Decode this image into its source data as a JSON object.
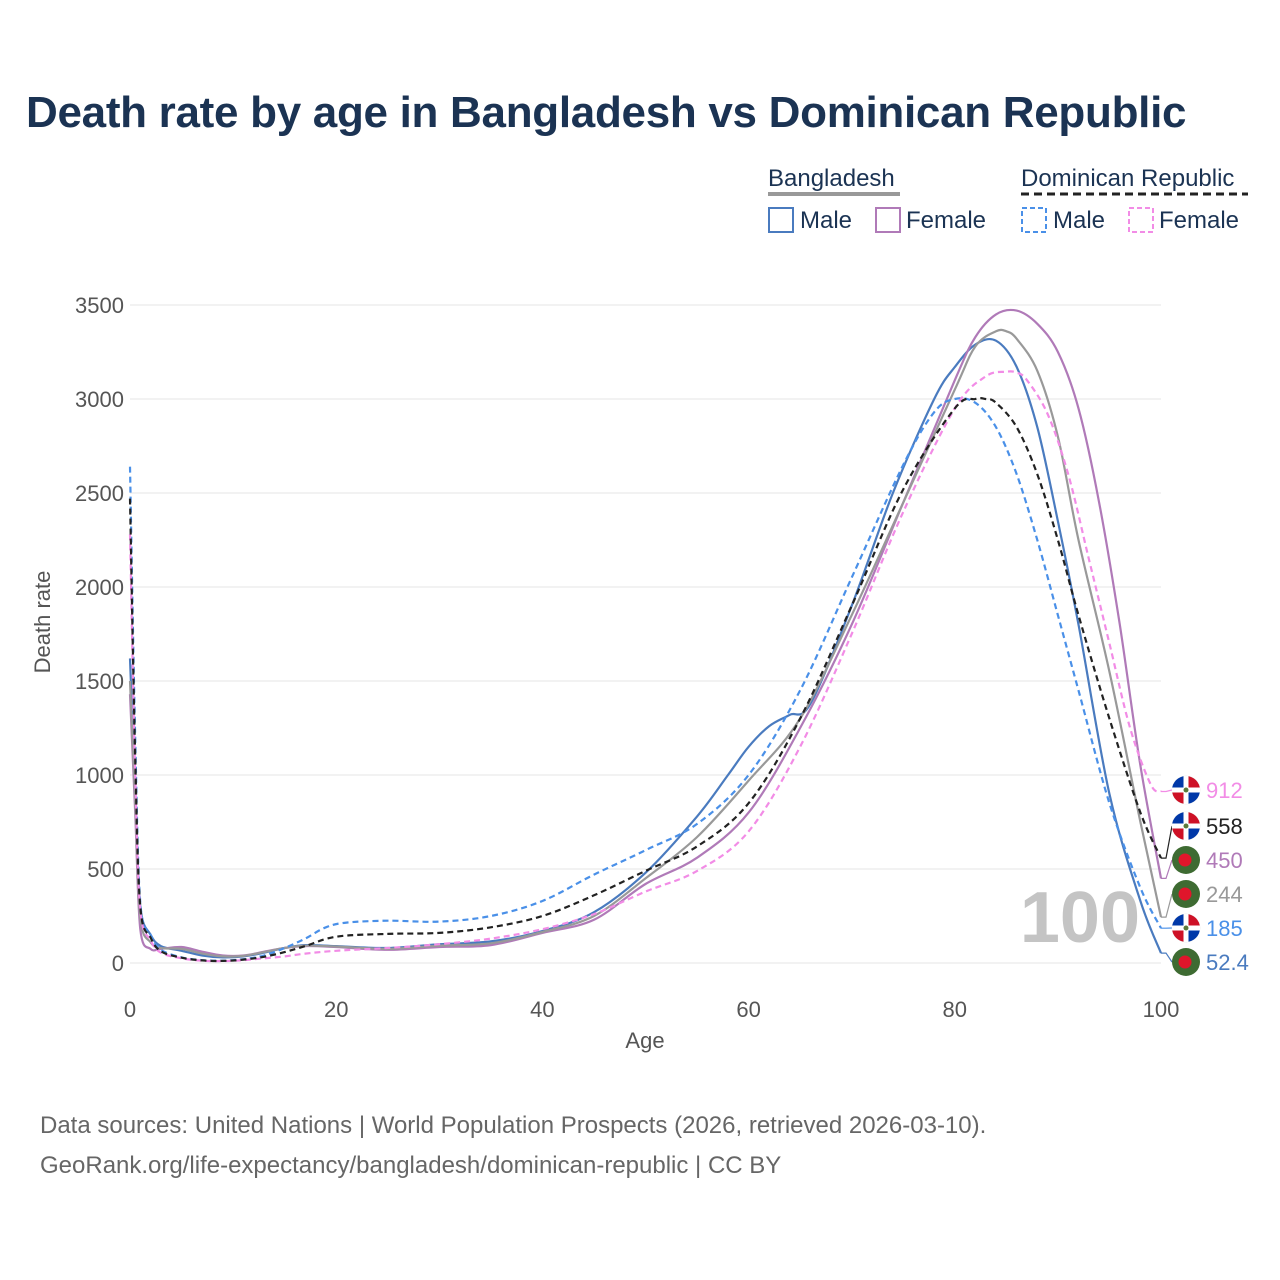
{
  "title": "Death rate by age in Bangladesh vs Dominican Republic",
  "legend": {
    "groups": [
      {
        "name": "Bangladesh",
        "line_color": "#999999",
        "line_style": "solid",
        "items": [
          {
            "label": "Male",
            "color": "#4a7bbf",
            "style": "solid"
          },
          {
            "label": "Female",
            "color": "#b07ab8",
            "style": "solid"
          }
        ]
      },
      {
        "name": "Dominican Republic",
        "line_color": "#222222",
        "line_style": "dashed",
        "items": [
          {
            "label": "Male",
            "color": "#4a90e8",
            "style": "dashed"
          },
          {
            "label": "Female",
            "color": "#f28ce6",
            "style": "dashed"
          }
        ]
      }
    ]
  },
  "watermark": "100",
  "footer": {
    "line1": "Data sources: United Nations | World Population Prospects (2026, retrieved 2026-03-10).",
    "line2": "GeoRank.org/life-expectancy/bangladesh/dominican-republic | CC BY"
  },
  "chart_data": {
    "type": "line",
    "title": "Death rate by age in Bangladesh vs Dominican Republic",
    "xlabel": "Age",
    "ylabel": "Death rate",
    "xlim": [
      0,
      100
    ],
    "ylim": [
      0,
      3500
    ],
    "xticks": [
      0,
      20,
      40,
      60,
      80,
      100
    ],
    "yticks": [
      0,
      500,
      1000,
      1500,
      2000,
      2500,
      3000,
      3500
    ],
    "grid": true,
    "series": [
      {
        "name": "Bangladesh Male",
        "color": "#4a7bbf",
        "dashed": false,
        "end_label": "52.4",
        "flag": "bangladesh",
        "x": [
          0,
          0.5,
          1,
          2,
          3,
          5,
          7,
          9,
          11,
          13,
          15,
          17,
          20,
          25,
          30,
          35,
          40,
          45,
          50,
          55,
          58,
          60,
          62,
          64,
          66,
          70,
          74,
          78,
          80,
          82,
          84,
          86,
          88,
          90,
          92,
          95,
          98,
          100
        ],
        "y": [
          1620,
          900,
          300,
          150,
          90,
          65,
          40,
          30,
          35,
          55,
          80,
          95,
          90,
          80,
          100,
          115,
          170,
          270,
          480,
          780,
          1000,
          1150,
          1260,
          1320,
          1380,
          1900,
          2500,
          3000,
          3170,
          3290,
          3310,
          3170,
          2850,
          2350,
          1800,
          900,
          330,
          52.4
        ]
      },
      {
        "name": "Bangladesh Female",
        "color": "#b07ab8",
        "dashed": false,
        "end_label": "450",
        "flag": "bangladesh",
        "x": [
          0,
          0.5,
          1,
          2,
          3,
          5,
          7,
          9,
          11,
          13,
          15,
          17,
          20,
          25,
          30,
          35,
          40,
          45,
          50,
          55,
          60,
          65,
          70,
          75,
          80,
          82,
          84,
          86,
          88,
          90,
          92,
          94,
          96,
          98,
          100
        ],
        "y": [
          1430,
          800,
          180,
          75,
          75,
          85,
          60,
          40,
          40,
          60,
          80,
          90,
          85,
          70,
          85,
          95,
          160,
          230,
          420,
          560,
          800,
          1250,
          1800,
          2450,
          3100,
          3330,
          3450,
          3470,
          3400,
          3250,
          2950,
          2450,
          1800,
          1050,
          450
        ]
      },
      {
        "name": "Bangladesh",
        "color": "#999999",
        "dashed": false,
        "end_label": "244",
        "flag": "bangladesh",
        "x": [
          0,
          0.5,
          1,
          2,
          3,
          5,
          7,
          9,
          11,
          13,
          15,
          17,
          20,
          25,
          30,
          35,
          40,
          45,
          50,
          55,
          60,
          65,
          70,
          75,
          80,
          82,
          84,
          85,
          86,
          88,
          90,
          92,
          95,
          98,
          100
        ],
        "y": [
          1500,
          850,
          240,
          110,
          80,
          75,
          50,
          35,
          38,
          58,
          80,
          92,
          88,
          75,
          92,
          105,
          165,
          250,
          450,
          670,
          970,
          1300,
          1850,
          2450,
          3050,
          3280,
          3360,
          3360,
          3320,
          3150,
          2800,
          2250,
          1550,
          750,
          244
        ]
      },
      {
        "name": "Dominican Republic Male",
        "color": "#4a90e8",
        "dashed": true,
        "end_label": "185",
        "flag": "dominican",
        "x": [
          0,
          0.5,
          1,
          2,
          3,
          5,
          7,
          9,
          11,
          13,
          15,
          17,
          19,
          21,
          25,
          30,
          35,
          40,
          45,
          50,
          55,
          60,
          65,
          70,
          75,
          78,
          80,
          82,
          84,
          86,
          88,
          90,
          92,
          95,
          98,
          100
        ],
        "y": [
          2640,
          1200,
          320,
          150,
          70,
          30,
          15,
          12,
          20,
          40,
          80,
          130,
          190,
          215,
          225,
          220,
          250,
          330,
          470,
          600,
          740,
          1000,
          1450,
          2050,
          2650,
          2930,
          3000,
          2980,
          2850,
          2600,
          2250,
          1850,
          1450,
          850,
          400,
          185
        ]
      },
      {
        "name": "Dominican Republic Female",
        "color": "#f28ce6",
        "dashed": true,
        "end_label": "912",
        "flag": "dominican",
        "x": [
          0,
          0.5,
          1,
          2,
          3,
          5,
          7,
          9,
          11,
          13,
          15,
          17,
          20,
          25,
          30,
          35,
          40,
          45,
          50,
          55,
          60,
          65,
          70,
          75,
          80,
          83,
          85,
          86,
          87,
          89,
          91,
          93,
          95,
          97,
          99,
          100
        ],
        "y": [
          2280,
          1000,
          280,
          120,
          55,
          25,
          12,
          10,
          15,
          25,
          35,
          50,
          65,
          80,
          100,
          130,
          180,
          260,
          380,
          490,
          700,
          1150,
          1750,
          2400,
          2950,
          3120,
          3145,
          3140,
          3100,
          2920,
          2600,
          2150,
          1700,
          1250,
          950,
          912
        ]
      },
      {
        "name": "Dominican Republic",
        "color": "#222222",
        "dashed": true,
        "end_label": "558",
        "flag": "dominican",
        "x": [
          0,
          0.5,
          1,
          2,
          3,
          5,
          7,
          9,
          11,
          13,
          15,
          17,
          20,
          25,
          30,
          35,
          40,
          45,
          50,
          55,
          60,
          65,
          70,
          75,
          80,
          82,
          83,
          84,
          86,
          88,
          90,
          92,
          95,
          98,
          100
        ],
        "y": [
          2470,
          1100,
          300,
          135,
          62,
          28,
          14,
          11,
          18,
          33,
          58,
          90,
          140,
          155,
          160,
          190,
          250,
          360,
          490,
          620,
          850,
          1300,
          1900,
          2520,
          2950,
          3000,
          3000,
          2980,
          2850,
          2600,
          2250,
          1850,
          1300,
          800,
          558
        ]
      }
    ]
  }
}
